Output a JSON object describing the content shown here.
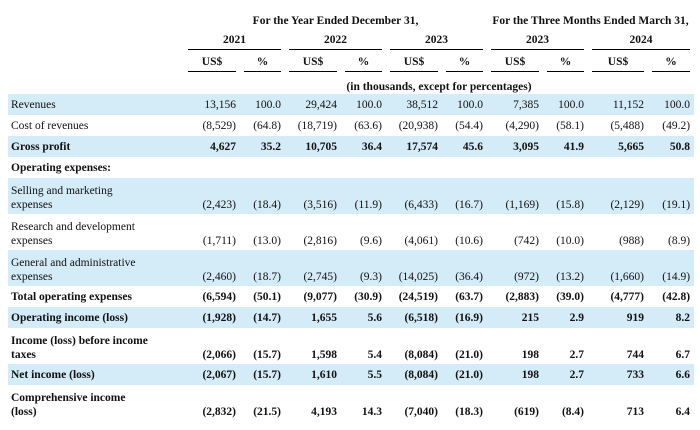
{
  "table": {
    "period_headers": [
      "For the Year Ended December 31,",
      "For the Three Months Ended March 31,"
    ],
    "years": [
      "2021",
      "2022",
      "2023",
      "2023",
      "2024"
    ],
    "units": [
      "US$",
      "%",
      "US$",
      "%",
      "US$",
      "%",
      "US$",
      "%",
      "US$",
      "%"
    ],
    "note": "(in thousands, except for percentages)",
    "rows": [
      {
        "label": "Revenues",
        "values": [
          "13,156",
          "100.0",
          "29,424",
          "100.0",
          "38,512",
          "100.0",
          "7,385",
          "100.0",
          "11,152",
          "100.0"
        ]
      },
      {
        "label": "Cost of revenues",
        "values": [
          "(8,529)",
          "(64.8)",
          "(18,719)",
          "(63.6)",
          "(20,938)",
          "(54.4)",
          "(4,290)",
          "(58.1)",
          "(5,488)",
          "(49.2)"
        ]
      },
      {
        "label": "Gross profit",
        "values": [
          "4,627",
          "35.2",
          "10,705",
          "36.4",
          "17,574",
          "45.6",
          "3,095",
          "41.9",
          "5,665",
          "50.8"
        ]
      },
      {
        "label": "Operating expenses:"
      },
      {
        "label": "Selling and marketing\nexpenses",
        "values": [
          "(2,423)",
          "(18.4)",
          "(3,516)",
          "(11.9)",
          "(6,433)",
          "(16.7)",
          "(1,169)",
          "(15.8)",
          "(2,129)",
          "(19.1)"
        ]
      },
      {
        "label": "Research and development\nexpenses",
        "values": [
          "(1,711)",
          "(13.0)",
          "(2,816)",
          "(9.6)",
          "(4,061)",
          "(10.6)",
          "(742)",
          "(10.0)",
          "(988)",
          "(8.9)"
        ]
      },
      {
        "label": "General and administrative\nexpenses",
        "values": [
          "(2,460)",
          "(18.7)",
          "(2,745)",
          "(9.3)",
          "(14,025)",
          "(36.4)",
          "(972)",
          "(13.2)",
          "(1,660)",
          "(14.9)"
        ]
      },
      {
        "label": "Total operating expenses",
        "values": [
          "(6,594)",
          "(50.1)",
          "(9,077)",
          "(30.9)",
          "(24,519)",
          "(63.7)",
          "(2,883)",
          "(39.0)",
          "(4,777)",
          "(42.8)"
        ]
      },
      {
        "label": "Operating income (loss)",
        "values": [
          "(1,928)",
          "(14.7)",
          "1,655",
          "5.6",
          "(6,518)",
          "(16.9)",
          "215",
          "2.9",
          "919",
          "8.2"
        ]
      },
      {
        "label": "Income (loss) before income\ntaxes",
        "values": [
          "(2,066)",
          "(15.7)",
          "1,598",
          "5.4",
          "(8,084)",
          "(21.0)",
          "198",
          "2.7",
          "744",
          "6.7"
        ]
      },
      {
        "label": "Net income (loss)",
        "values": [
          "(2,067)",
          "(15.7)",
          "1,610",
          "5.5",
          "(8,084)",
          "(21.0)",
          "198",
          "2.7",
          "733",
          "6.6"
        ]
      },
      {
        "label": "Comprehensive income\n(loss)",
        "values": [
          "(2,832)",
          "(21.5)",
          "4,193",
          "14.3",
          "(7,040)",
          "(18.3)",
          "(619)",
          "(8.4)",
          "713",
          "6.4"
        ]
      }
    ]
  }
}
